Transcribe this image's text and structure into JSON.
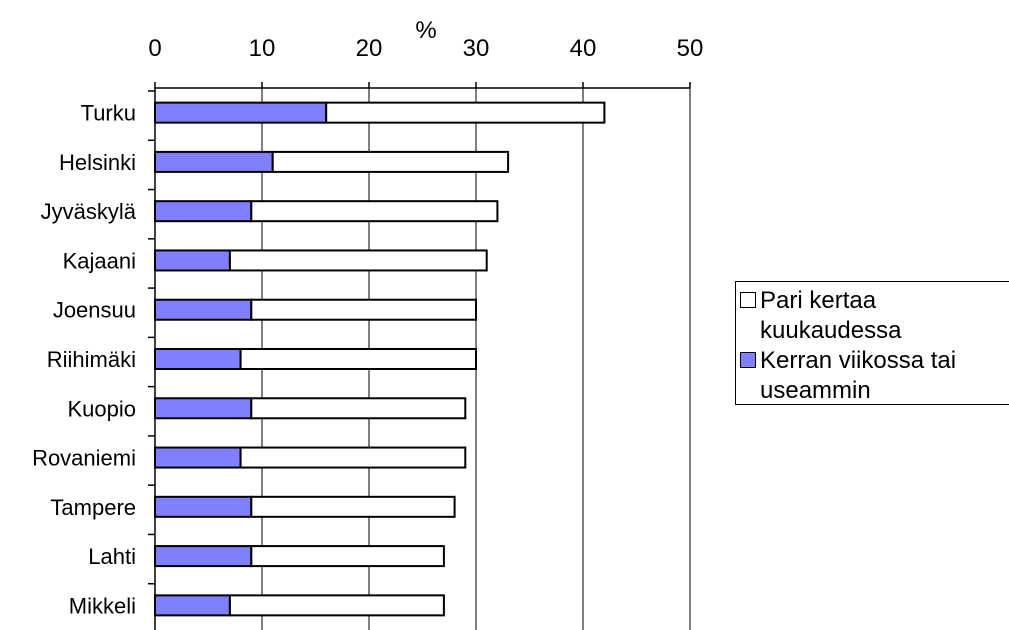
{
  "chart_data": {
    "type": "bar",
    "orientation": "horizontal",
    "stacked": true,
    "title": "",
    "xlabel": "%",
    "ylabel": "",
    "xlim": [
      0,
      50
    ],
    "x_ticks": [
      "0",
      "10",
      "20",
      "30",
      "40",
      "50"
    ],
    "grid": true,
    "legend_position": "right",
    "categories": [
      "Turku",
      "Helsinki",
      "Jyväskylä",
      "Kajaani",
      "Joensuu",
      "Riihimäki",
      "Kuopio",
      "Rovaniemi",
      "Tampere",
      "Lahti",
      "Mikkeli"
    ],
    "series": [
      {
        "name": "Kerran viikossa tai useammin",
        "color": "#8080ff",
        "values": [
          16,
          11,
          9,
          7,
          9,
          8,
          9,
          8,
          9,
          9,
          7
        ]
      },
      {
        "name": "Pari kertaa kuukaudessa",
        "color": "#ffffff",
        "values": [
          26,
          22,
          23,
          24,
          21,
          22,
          20,
          21,
          19,
          18,
          20
        ]
      }
    ],
    "legend": [
      {
        "label_lines": [
          "Pari kertaa",
          "kuukaudessa"
        ],
        "color": "#ffffff"
      },
      {
        "label_lines": [
          "Kerran viikossa tai",
          "useammin"
        ],
        "color": "#8080ff"
      }
    ]
  }
}
